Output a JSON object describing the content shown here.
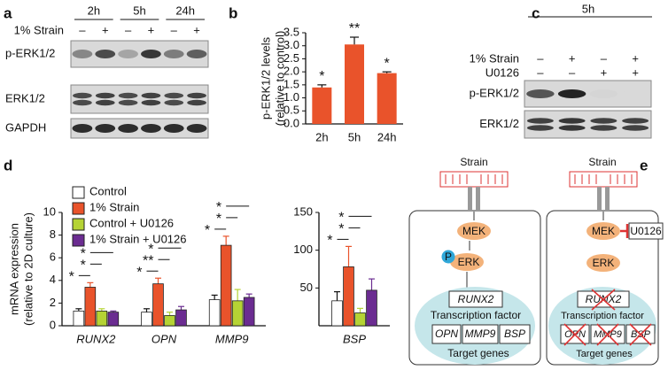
{
  "panel_labels": [
    "a",
    "b",
    "c",
    "d",
    "e"
  ],
  "blot_a": {
    "times": [
      "2h",
      "5h",
      "24h"
    ],
    "strain_label": "1% Strain",
    "strain_signs": [
      "–",
      "+",
      "–",
      "+",
      "–",
      "+"
    ],
    "rows": [
      "p-ERK1/2",
      "ERK1/2",
      "GAPDH"
    ]
  },
  "blot_c": {
    "time": "5h",
    "strain_label": "1% Strain",
    "strain_signs": [
      "–",
      "+",
      "–",
      "+"
    ],
    "inhibitor_label": "U0126",
    "inhibitor_signs": [
      "–",
      "–",
      "+",
      "+"
    ],
    "rows": [
      "p-ERK1/2",
      "ERK1/2"
    ]
  },
  "chart_data": [
    {
      "type": "bar",
      "ylabel": [
        "p-ERK1/2 levels",
        "(relative to control)"
      ],
      "categories": [
        "2h",
        "5h",
        "24h"
      ],
      "values": [
        1.4,
        3.05,
        1.95
      ],
      "errors": [
        0.1,
        0.28,
        0.05
      ],
      "annotations": [
        "*",
        "**",
        "*"
      ],
      "color": "#e9532b",
      "ylim": [
        0,
        3.5
      ],
      "yticks": [
        {
          "value": 0,
          "label": "0.0"
        },
        0.5,
        {
          "value": 1,
          "label": "1.0"
        },
        1.5,
        {
          "value": 2,
          "label": "2.0"
        },
        2.5,
        {
          "value": 3,
          "label": "3.0"
        },
        3.5
      ]
    },
    {
      "type": "grouped_bar",
      "ylabel": [
        "mRNA expression",
        "(relative to 2D culture)"
      ],
      "categories": [
        "RUNX2",
        "OPN",
        "MMP9"
      ],
      "series": [
        {
          "name": "Control",
          "color": "#ffffff",
          "values": [
            1.3,
            1.2,
            2.3
          ],
          "errors": [
            0.2,
            0.3,
            0.4
          ]
        },
        {
          "name": "1% Strain",
          "color": "#e9532b",
          "values": [
            3.4,
            3.7,
            7.1
          ],
          "errors": [
            0.4,
            0.5,
            0.8
          ]
        },
        {
          "name": "Control + U0126",
          "color": "#b5d334",
          "values": [
            1.3,
            0.9,
            2.2
          ],
          "errors": [
            0.2,
            0.3,
            1.0
          ]
        },
        {
          "name": "1% Strain + U0126",
          "color": "#6b2c91",
          "values": [
            1.2,
            1.4,
            2.5
          ],
          "errors": [
            0.1,
            0.3,
            0.3
          ]
        }
      ],
      "significance": [
        [
          "*",
          "*",
          "*"
        ],
        [
          "*",
          "**",
          "*"
        ],
        [
          "*",
          "*",
          "*"
        ]
      ],
      "ylim": [
        0,
        10
      ],
      "yticks": [
        0,
        2,
        4,
        6,
        8,
        10
      ],
      "legend": "upper left"
    },
    {
      "type": "grouped_bar",
      "categories": [
        "BSP"
      ],
      "series": [
        {
          "color": "#ffffff",
          "values": [
            33
          ],
          "errors": [
            12
          ]
        },
        {
          "color": "#e9532b",
          "values": [
            78
          ],
          "errors": [
            27
          ]
        },
        {
          "color": "#b5d334",
          "values": [
            17
          ],
          "errors": [
            6
          ]
        },
        {
          "color": "#6b2c91",
          "values": [
            47
          ],
          "errors": [
            15
          ]
        }
      ],
      "significance": [
        [
          "*",
          "*",
          "*"
        ]
      ],
      "ylim": [
        0,
        150
      ],
      "yticks": [
        50,
        100,
        150
      ]
    }
  ],
  "diagram": {
    "left": {
      "stimulus": "Strain",
      "kinase": "MEK",
      "phospho": "P",
      "effector": "ERK",
      "tf_gene": "RUNX2",
      "tf_label": "Transcription factor",
      "targets": [
        "OPN",
        "MMP9",
        "BSP"
      ],
      "targets_label": "Target genes"
    },
    "right": {
      "stimulus": "Strain",
      "kinase": "MEK",
      "inhibitor": "U0126",
      "effector": "ERK",
      "tf_gene": "RUNX2",
      "tf_label": "Transcription factor",
      "targets": [
        "OPN",
        "MMP9",
        "BSP"
      ],
      "targets_label": "Target genes"
    }
  }
}
